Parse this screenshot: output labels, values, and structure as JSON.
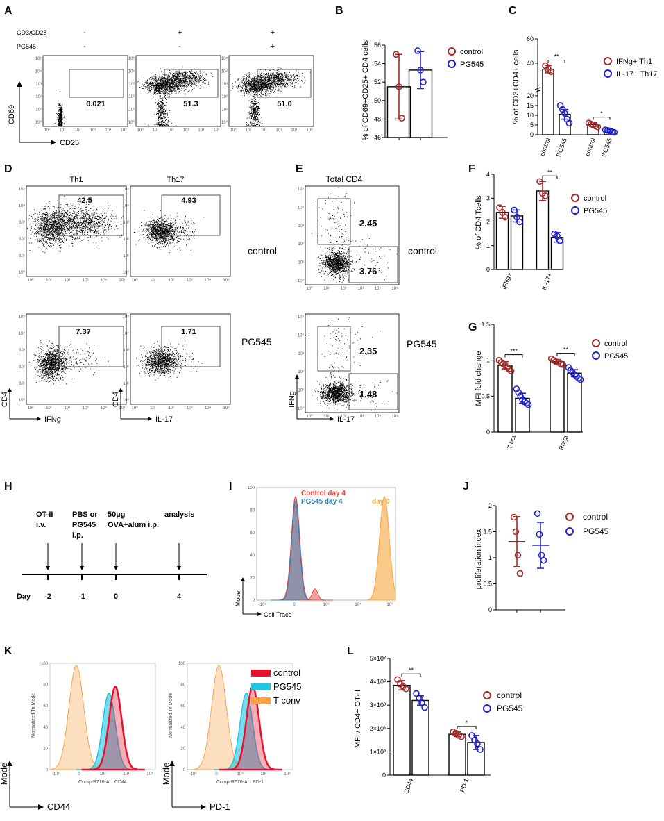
{
  "panels": {
    "A": {
      "letter": "A",
      "row_labels": [
        "CD3/CD28",
        "PG545"
      ],
      "conditions": [
        {
          "cd3": "-",
          "pg": "-",
          "gate": "0.021"
        },
        {
          "cd3": "+",
          "pg": "-",
          "gate": "51.3"
        },
        {
          "cd3": "+",
          "pg": "+",
          "gate": "51.0"
        }
      ],
      "ylabel": "CD69",
      "xlabel": "CD25"
    },
    "B": {
      "letter": "B",
      "legend": [
        "control",
        "PG545"
      ]
    },
    "C": {
      "letter": "C",
      "legend": [
        "IFNg+ Th1",
        "IL-17+ Th17"
      ]
    },
    "D": {
      "letter": "D",
      "col_titles": [
        "Th1",
        "Th17"
      ],
      "row_labels": [
        "control",
        "PG545"
      ],
      "gates": [
        [
          "42.5",
          "4.93"
        ],
        [
          "7.37",
          "1.71"
        ]
      ],
      "ylabel": "CD4",
      "xlabels": [
        "IFNg",
        "IL-17"
      ]
    },
    "E": {
      "letter": "E",
      "title": "Total CD4",
      "row_labels": [
        "control",
        "PG545"
      ],
      "gates": [
        [
          "2.45",
          "3.76"
        ],
        [
          "2.35",
          "1.48"
        ]
      ],
      "ylabel": "IFNg",
      "xlabel": "IL-17"
    },
    "F": {
      "letter": "F",
      "legend": [
        "control",
        "PG545"
      ]
    },
    "G": {
      "letter": "G",
      "legend": [
        "control",
        "PG545"
      ]
    },
    "H": {
      "letter": "H",
      "day_label": "Day",
      "steps": [
        {
          "day": "-2",
          "l1": "OT-II",
          "l2": "i.v.",
          "l3": ""
        },
        {
          "day": "-1",
          "l1": "PBS or",
          "l2": "PG545",
          "l3": "i.p."
        },
        {
          "day": "0",
          "l1": "50µg",
          "l2": "OVA+alum i.p.",
          "l3": ""
        },
        {
          "day": "4",
          "l1": "analysis",
          "l2": "",
          "l3": ""
        }
      ]
    },
    "I": {
      "letter": "I",
      "legend": [
        "Control day 4",
        "PG545 day 4",
        "day 0"
      ],
      "ylabel": "Mode",
      "xlabel": "Cell Trace",
      "colors": [
        "#e8453c",
        "#2f7fb8",
        "#f5a53a"
      ],
      "yticks": [
        "0",
        "20",
        "40",
        "60",
        "80",
        "100"
      ],
      "xticks": [
        "-10³",
        "0",
        "10³",
        "10⁴",
        "10⁵"
      ]
    },
    "J": {
      "letter": "J",
      "legend": [
        "control",
        "PG545"
      ]
    },
    "K": {
      "letter": "K",
      "legend": [
        "control",
        "PG545",
        "T conv"
      ],
      "colors": [
        "#e8112d",
        "#1ec6e0",
        "#f7a448"
      ],
      "ylabel": "Mode",
      "side_label": "Normalized To Mode",
      "hist_x": [
        "Comp-B710-A :: CD44",
        "Comp-R670-A :: PD-1"
      ],
      "xlabels": [
        "CD44",
        "PD-1"
      ],
      "yticks": [
        "0",
        "20",
        "40",
        "60",
        "80",
        "100"
      ],
      "xticks": [
        "-10³",
        "0",
        "10³",
        "10⁴",
        "10⁵"
      ]
    },
    "L": {
      "letter": "L",
      "legend": [
        "control",
        "PG545"
      ]
    }
  },
  "flow_ticks": {
    "y": [
      "10⁰",
      "10¹",
      "10²",
      "10³",
      "10⁴",
      "10⁵"
    ],
    "x": [
      "10⁰",
      "10¹",
      "10²",
      "10³",
      "10⁴",
      "10⁵"
    ]
  },
  "colors": {
    "control": "#a52a2a",
    "pg545": "#2222cc"
  },
  "chart_data": [
    {
      "id": "B",
      "type": "bar",
      "categories": [
        "control",
        "PG545"
      ],
      "values": [
        51.5,
        53.3
      ],
      "errors": [
        3.5,
        2.0
      ],
      "points": [
        [
          55.0,
          51.5,
          48.1
        ],
        [
          55.4,
          53.3,
          52.0
        ]
      ],
      "ylabel": "% of CD69+CD25+ CD4 cells",
      "ylim": [
        46,
        56
      ],
      "yticks": [
        46,
        48,
        50,
        52,
        54,
        56
      ],
      "xticklabels": [],
      "significance": []
    },
    {
      "id": "C",
      "type": "bar",
      "categories": [
        "control",
        "PG545",
        "control",
        "PG545"
      ],
      "series_index": [
        0,
        1,
        0,
        1
      ],
      "values": [
        35,
        10.5,
        5.2,
        2.0
      ],
      "errors": [
        3,
        2.5,
        1.0,
        0.8
      ],
      "points": [
        [
          38,
          35,
          33
        ],
        [
          15,
          13,
          11,
          8,
          6
        ],
        [
          6,
          5.5,
          5,
          4.5,
          4
        ],
        [
          2.5,
          2.2,
          2,
          1.5,
          1.2
        ]
      ],
      "ylabel": "% of CD3+CD4+ cells",
      "yticks": [
        0,
        5,
        10,
        15,
        20,
        40,
        60
      ],
      "xticklabels": [
        "control",
        "PG545",
        "control",
        "PG545"
      ],
      "significance": [
        {
          "from": 0,
          "to": 1,
          "label": "**"
        },
        {
          "from": 2,
          "to": 3,
          "label": "*"
        }
      ]
    },
    {
      "id": "F",
      "type": "bar",
      "categories": [
        "IFNg+",
        "IFNg+",
        "IL-17+",
        "IL-17+"
      ],
      "series_index": [
        0,
        1,
        0,
        1
      ],
      "values": [
        2.4,
        2.25,
        3.3,
        1.35
      ],
      "errors": [
        0.25,
        0.25,
        0.4,
        0.2
      ],
      "points": [
        [
          2.6,
          2.4,
          2.2
        ],
        [
          2.5,
          2.2,
          2.0
        ],
        [
          3.7,
          3.2,
          3.1
        ],
        [
          1.5,
          1.4,
          1.2
        ]
      ],
      "ylabel": "% of CD4 Tcells",
      "ylim": [
        0,
        4
      ],
      "yticks": [
        0,
        1,
        2,
        3,
        4
      ],
      "xticklabels": [
        "IFNg+",
        "IL-17+"
      ],
      "significance": [
        {
          "from": 2,
          "to": 3,
          "label": "**"
        }
      ]
    },
    {
      "id": "G",
      "type": "bar",
      "categories": [
        "T-bet",
        "T-bet",
        "Rorgt",
        "Rorgt"
      ],
      "series_index": [
        0,
        1,
        0,
        1
      ],
      "values": [
        0.93,
        0.47,
        0.98,
        0.82
      ],
      "errors": [
        0.05,
        0.07,
        0.03,
        0.05
      ],
      "points": [
        [
          1.0,
          0.97,
          0.95,
          0.93,
          0.9,
          0.88,
          0.85
        ],
        [
          0.6,
          0.55,
          0.5,
          0.45,
          0.42,
          0.4,
          0.38
        ],
        [
          1.02,
          1.0,
          0.98,
          0.97,
          0.95,
          0.94
        ],
        [
          0.9,
          0.86,
          0.83,
          0.8,
          0.78,
          0.75,
          0.73
        ]
      ],
      "ylabel": "MFI fold change",
      "ylim": [
        0,
        1.5
      ],
      "yticks": [
        0,
        0.5,
        1.0,
        1.5
      ],
      "xticklabels": [
        "T-bet",
        "Rorgt"
      ],
      "significance": [
        {
          "from": 0,
          "to": 1,
          "label": "***"
        },
        {
          "from": 2,
          "to": 3,
          "label": "**"
        }
      ]
    },
    {
      "id": "J",
      "type": "scatter",
      "categories": [
        "control",
        "PG545"
      ],
      "values": [
        1.31,
        1.24
      ],
      "errors": [
        0.48,
        0.44
      ],
      "points": [
        [
          1.78,
          1.5,
          1.05,
          0.7
        ],
        [
          1.85,
          1.45,
          1.05,
          0.95
        ]
      ],
      "ylabel": "proliferation index",
      "ylim": [
        0,
        2.0
      ],
      "yticks": [
        0,
        0.5,
        1.0,
        1.5,
        2.0
      ],
      "xticklabels": [],
      "significance": []
    },
    {
      "id": "L",
      "type": "bar",
      "categories": [
        "CD44",
        "CD44",
        "PD-1",
        "PD-1"
      ],
      "series_index": [
        0,
        1,
        0,
        1
      ],
      "values": [
        3850,
        3200,
        1750,
        1400
      ],
      "errors": [
        200,
        200,
        100,
        300
      ],
      "points": [
        [
          4100,
          3900,
          3800,
          3700
        ],
        [
          3500,
          3300,
          3100,
          2900
        ],
        [
          1850,
          1800,
          1700,
          1650
        ],
        [
          1700,
          1500,
          1350,
          1100
        ]
      ],
      "ylabel": "MFI  / CD4+ OT-II",
      "ylim": [
        0,
        5000
      ],
      "yticks": [
        0,
        1000,
        2000,
        3000,
        4000,
        5000
      ],
      "yticklabels": [
        "0",
        "1×10³",
        "2×10³",
        "3×10³",
        "4×10³",
        "5×10³"
      ],
      "xticklabels": [
        "CD44",
        "PD-1"
      ],
      "significance": [
        {
          "from": 0,
          "to": 1,
          "label": "**"
        },
        {
          "from": 2,
          "to": 3,
          "label": "*"
        }
      ]
    }
  ]
}
